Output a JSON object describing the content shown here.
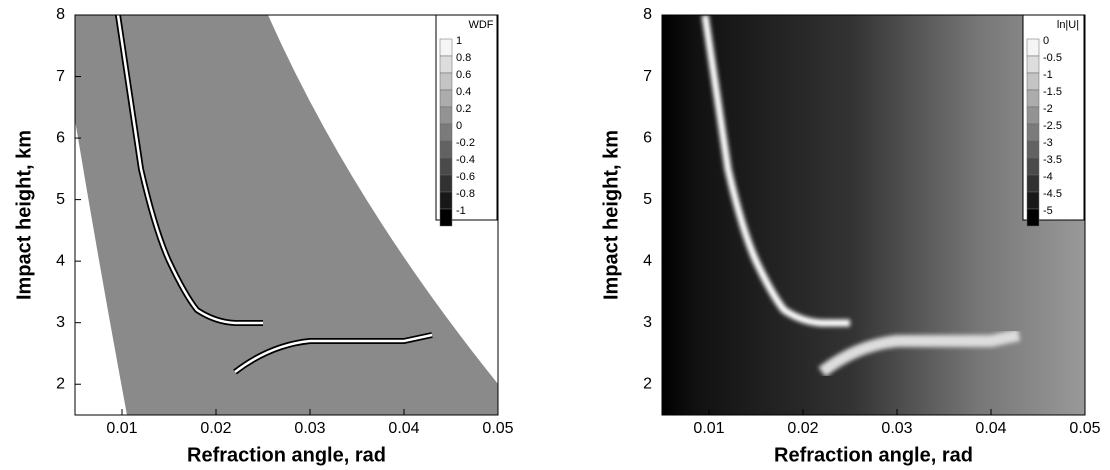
{
  "chart_data": [
    {
      "type": "contour",
      "xlabel": "Refraction angle, rad",
      "ylabel": "Impact height, km",
      "xlim": [
        0.005,
        0.05
      ],
      "xticks": [
        0.01,
        0.02,
        0.03,
        0.04,
        0.05
      ],
      "ylim": [
        1.5,
        8
      ],
      "yticks": [
        2,
        3,
        4,
        5,
        6,
        7,
        8
      ],
      "colorbar": {
        "title": "WDF",
        "levels": [
          1,
          0.8,
          0.6,
          0.4,
          0.2,
          0,
          -0.2,
          -0.4,
          -0.6,
          -0.8,
          -1
        ]
      }
    },
    {
      "type": "contour",
      "xlabel": "Refraction angle, rad",
      "ylabel": "Impact height, km",
      "xlim": [
        0.005,
        0.05
      ],
      "xticks": [
        0.01,
        0.02,
        0.03,
        0.04,
        0.05
      ],
      "ylim": [
        1.5,
        8
      ],
      "yticks": [
        2,
        3,
        4,
        5,
        6,
        7,
        8
      ],
      "colorbar": {
        "title": "ln|U|",
        "levels": [
          0,
          -0.5,
          -1,
          -1.5,
          -2,
          -2.5,
          -3,
          -3.5,
          -4,
          -4.5,
          -5
        ]
      }
    }
  ]
}
